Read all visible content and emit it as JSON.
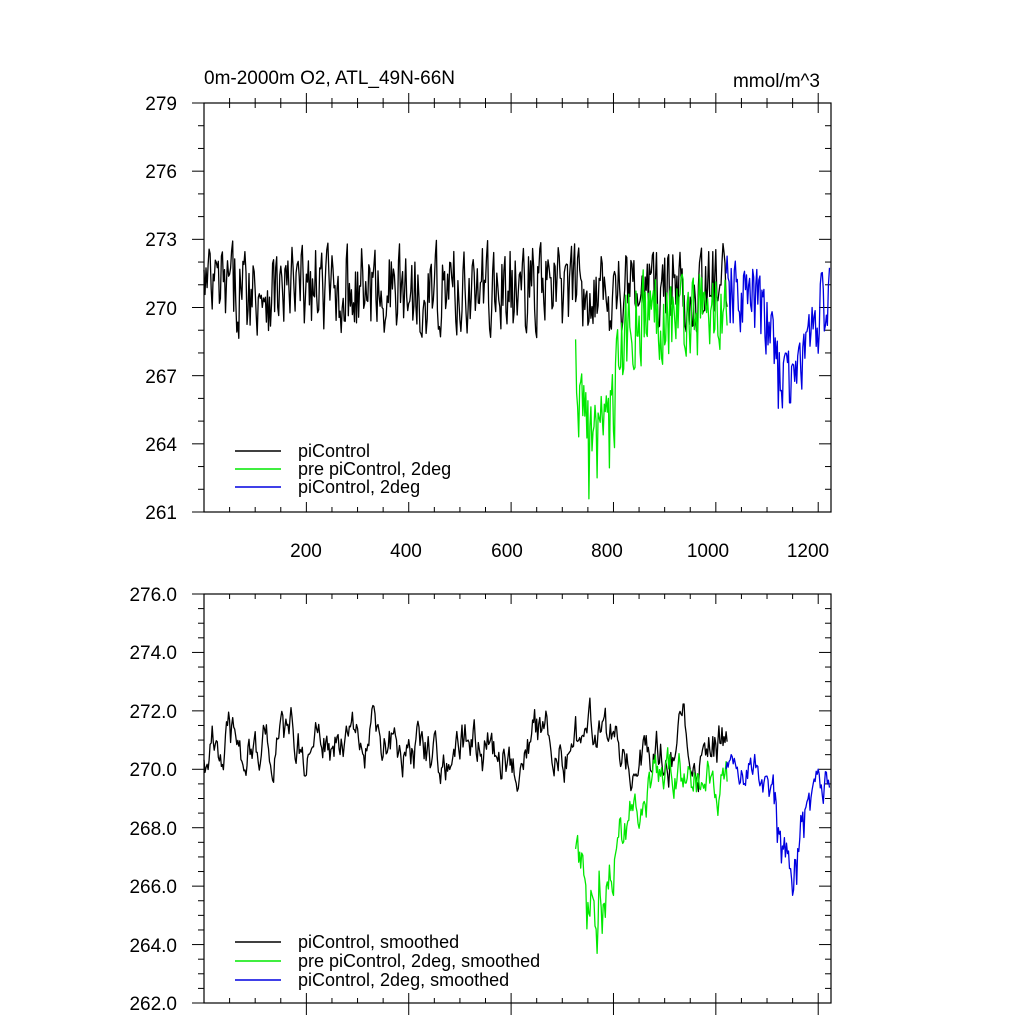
{
  "chart_data": [
    {
      "type": "line",
      "title": "0m-2000m O2, ATL_49N-66N",
      "units": "mmol/m^3",
      "xlim": [
        0,
        1225
      ],
      "ylim": [
        261,
        279
      ],
      "x_ticks": [
        "200",
        "400",
        "600",
        "800",
        "1000",
        "1200"
      ],
      "y_ticks": [
        "261",
        "264",
        "267",
        "270",
        "273",
        "276",
        "279"
      ],
      "legend_placement": "bottom-left",
      "series": [
        {
          "name": "piControl",
          "color": "#000000",
          "x_start": 0,
          "x_end": 1022,
          "mean": 270.8,
          "amp": 1.8,
          "spike_x": 768,
          "spike_y": 270.8
        },
        {
          "name": "pre piControl, 2deg",
          "color": "#00e800",
          "x_start": 726,
          "x_end": 1022,
          "mean": 269.8,
          "amp": 1.9,
          "spike_x": 768,
          "spike_y": 262.5
        },
        {
          "name": "piControl, 2deg",
          "color": "#0000e0",
          "x_start": 1020,
          "x_end": 1222,
          "mean": 270.5,
          "amp": 1.6,
          "spike_x": 1145,
          "spike_y": 265.8
        }
      ]
    },
    {
      "type": "line",
      "title": "",
      "xlim": [
        0,
        1225
      ],
      "ylim": [
        262,
        276
      ],
      "y_ticks": [
        "262.0",
        "264.0",
        "266.0",
        "268.0",
        "270.0",
        "272.0",
        "274.0",
        "276.0"
      ],
      "legend_placement": "bottom-left",
      "series": [
        {
          "name": "piControl, smoothed",
          "color": "#000000",
          "x_start": 0,
          "x_end": 1022,
          "mean": 270.8,
          "amp": 1.4,
          "spike_x": 768,
          "spike_y": 270.8
        },
        {
          "name": "pre piControl, 2deg, smoothed",
          "color": "#00e800",
          "x_start": 726,
          "x_end": 1022,
          "mean": 269.6,
          "amp": 1.3,
          "spike_x": 768,
          "spike_y": 263.7
        },
        {
          "name": "piControl, 2deg, smoothed",
          "color": "#0000e0",
          "x_start": 1020,
          "x_end": 1222,
          "mean": 270.3,
          "amp": 1.1,
          "spike_x": 1145,
          "spike_y": 266.6
        }
      ]
    }
  ]
}
